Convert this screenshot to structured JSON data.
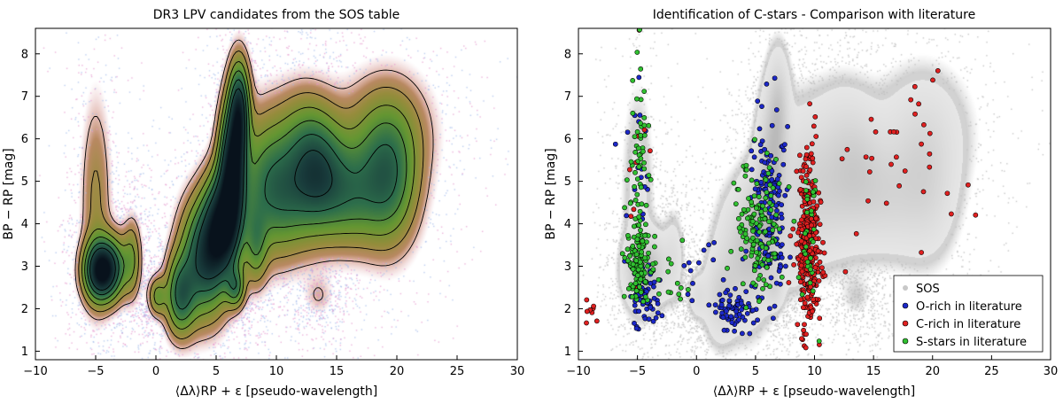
{
  "chart_data": [
    {
      "type": "heatmap",
      "title": "DR3 LPV candidates from the SOS table",
      "xlabel": "⟨Δλ⟩RP + ε [pseudo-wavelength]",
      "ylabel": "BP − RP [mag]",
      "xlim": [
        -10,
        30
      ],
      "ylim": [
        0.8,
        8.6
      ],
      "xticks": [
        -10,
        -5,
        0,
        5,
        10,
        15,
        20,
        25,
        30
      ],
      "yticks": [
        1,
        2,
        3,
        4,
        5,
        6,
        7,
        8
      ],
      "density_components": [
        {
          "x": -4.6,
          "y": 2.9,
          "sx": 0.9,
          "sy": 0.45,
          "w": 1.0
        },
        {
          "x": -5.0,
          "y": 4.5,
          "sx": 0.8,
          "sy": 1.6,
          "w": 0.18
        },
        {
          "x": -3.5,
          "y": 3.0,
          "sx": 0.9,
          "sy": 0.5,
          "w": 0.35
        },
        {
          "x": -2.0,
          "y": 3.2,
          "sx": 0.5,
          "sy": 0.6,
          "w": 0.25
        },
        {
          "x": 0.1,
          "y": 2.3,
          "sx": 0.5,
          "sy": 0.3,
          "w": 0.3
        },
        {
          "x": 2.0,
          "y": 2.3,
          "sx": 0.8,
          "sy": 0.6,
          "w": 0.55
        },
        {
          "x": 4.0,
          "y": 3.2,
          "sx": 1.3,
          "sy": 0.9,
          "w": 0.75
        },
        {
          "x": 5.5,
          "y": 4.0,
          "sx": 1.0,
          "sy": 0.8,
          "w": 0.9
        },
        {
          "x": 6.3,
          "y": 5.3,
          "sx": 0.7,
          "sy": 1.0,
          "w": 1.0
        },
        {
          "x": 6.9,
          "y": 6.7,
          "sx": 0.55,
          "sy": 0.75,
          "w": 0.75
        },
        {
          "x": 6.6,
          "y": 2.5,
          "sx": 0.5,
          "sy": 0.3,
          "w": 0.4
        },
        {
          "x": 8.3,
          "y": 3.5,
          "sx": 0.6,
          "sy": 0.6,
          "w": 0.3
        },
        {
          "x": 9.0,
          "y": 5.0,
          "sx": 1.6,
          "sy": 1.1,
          "w": 0.35
        },
        {
          "x": 11.0,
          "y": 4.7,
          "sx": 1.8,
          "sy": 0.9,
          "w": 0.38
        },
        {
          "x": 13.4,
          "y": 5.3,
          "sx": 1.5,
          "sy": 0.9,
          "w": 0.55
        },
        {
          "x": 16.0,
          "y": 4.7,
          "sx": 1.8,
          "sy": 0.8,
          "w": 0.42
        },
        {
          "x": 19.3,
          "y": 5.0,
          "sx": 1.6,
          "sy": 1.0,
          "w": 0.5
        },
        {
          "x": 19.0,
          "y": 6.2,
          "sx": 2.5,
          "sy": 0.9,
          "w": 0.22
        },
        {
          "x": 12.0,
          "y": 6.2,
          "sx": 1.5,
          "sy": 0.8,
          "w": 0.15
        },
        {
          "x": 13.5,
          "y": 2.3,
          "sx": 0.8,
          "sy": 0.3,
          "w": 0.08
        }
      ],
      "contour_levels": [
        0.08,
        0.16,
        0.28,
        0.42,
        0.58,
        0.75
      ]
    },
    {
      "type": "scatter",
      "title": "Identification of C-stars - Comparison with literature",
      "xlabel": "⟨Δλ⟩RP + ε [pseudo-wavelength]",
      "ylabel": "BP − RP [mag]",
      "xlim": [
        -10,
        30
      ],
      "ylim": [
        0.8,
        8.6
      ],
      "xticks": [
        -10,
        -5,
        0,
        5,
        10,
        15,
        20,
        25,
        30
      ],
      "yticks": [
        1,
        2,
        3,
        4,
        5,
        6,
        7,
        8
      ],
      "legend_position": "bottom-right",
      "series": [
        {
          "name": "SOS",
          "color": "#c8c8c8",
          "description_of_distribution": "same as left panel"
        },
        {
          "name": "O-rich in literature",
          "color": "#1c28c8",
          "clusters": [
            {
              "x": -4.5,
              "y": 2.3,
              "sx": 0.7,
              "sy": 0.4,
              "n": 70
            },
            {
              "x": -4.8,
              "y": 5.0,
              "sx": 0.5,
              "sy": 1.2,
              "n": 20
            },
            {
              "x": 3.5,
              "y": 2.0,
              "sx": 1.2,
              "sy": 0.3,
              "n": 70
            },
            {
              "x": 6.2,
              "y": 4.5,
              "sx": 0.7,
              "sy": 1.3,
              "n": 150
            },
            {
              "x": 0.5,
              "y": 3.0,
              "sx": 1.5,
              "sy": 0.6,
              "n": 15
            }
          ]
        },
        {
          "name": "C-rich in literature",
          "color": "#e02020",
          "clusters": [
            {
              "x": 9.5,
              "y": 3.6,
              "sx": 0.45,
              "sy": 1.05,
              "n": 320
            },
            {
              "x": 18.0,
              "y": 5.5,
              "sx": 3.0,
              "sy": 0.9,
              "n": 35
            },
            {
              "x": -9.0,
              "y": 1.8,
              "sx": 0.6,
              "sy": 0.2,
              "n": 8
            },
            {
              "x": -4.8,
              "y": 4.8,
              "sx": 0.5,
              "sy": 1.5,
              "n": 12
            }
          ]
        },
        {
          "name": "S-stars in literature",
          "color": "#30c030",
          "clusters": [
            {
              "x": -4.8,
              "y": 3.1,
              "sx": 0.5,
              "sy": 0.5,
              "n": 120
            },
            {
              "x": -5.0,
              "y": 5.3,
              "sx": 0.5,
              "sy": 1.2,
              "n": 50
            },
            {
              "x": 5.2,
              "y": 3.8,
              "sx": 0.9,
              "sy": 0.8,
              "n": 140
            },
            {
              "x": 9.6,
              "y": 3.4,
              "sx": 0.4,
              "sy": 0.8,
              "n": 30
            },
            {
              "x": -2.5,
              "y": 2.8,
              "sx": 0.8,
              "sy": 0.5,
              "n": 15
            }
          ]
        }
      ]
    }
  ]
}
